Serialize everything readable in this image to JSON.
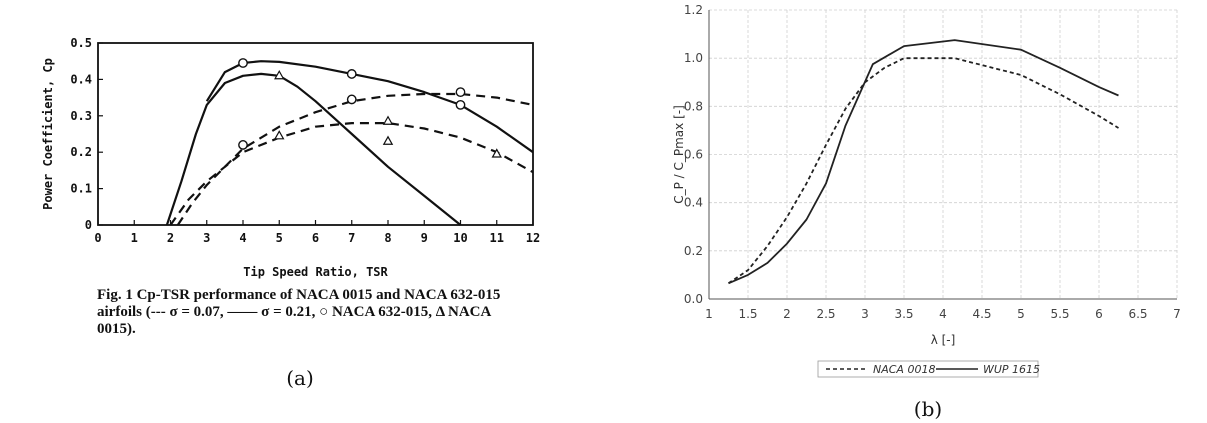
{
  "panel_a": {
    "subfig_label": "(a)",
    "caption": [
      "Fig. 1  Cp-TSR performance of NACA 0015 and NACA 632-015",
      "airfoils (--- σ = 0.07, —— σ = 0.21, ○ NACA 632-015, Δ NACA",
      "0015)."
    ]
  },
  "panel_b": {
    "subfig_label": "(b)"
  },
  "chart_data": [
    {
      "type": "line",
      "title": "",
      "xlabel": "Tip Speed Ratio, TSR",
      "ylabel": "Power Coefficient, Cp",
      "xlim": [
        0,
        12
      ],
      "ylim": [
        0,
        0.5
      ],
      "xticks": [
        "0",
        "1",
        "2",
        "3",
        "4",
        "5",
        "6",
        "7",
        "8",
        "9",
        "10",
        "11",
        "12"
      ],
      "yticks": [
        "0",
        "0.1",
        "0.2",
        "0.3",
        "0.4",
        "0.5"
      ],
      "grid": false,
      "series": [
        {
          "style": "solid",
          "x": [
            1.9,
            2.3,
            2.7,
            3,
            3.5,
            4,
            4.5,
            5,
            5.5,
            6,
            7,
            8,
            9,
            10
          ],
          "y": [
            0,
            0.12,
            0.25,
            0.33,
            0.39,
            0.41,
            0.415,
            0.41,
            0.38,
            0.34,
            0.25,
            0.16,
            0.08,
            0
          ]
        },
        {
          "style": "solid",
          "x": [
            3,
            3.5,
            4,
            4.5,
            5,
            6,
            7,
            8,
            9,
            10,
            11,
            12
          ],
          "y": [
            0.34,
            0.42,
            0.445,
            0.45,
            0.448,
            0.435,
            0.415,
            0.395,
            0.365,
            0.33,
            0.27,
            0.2
          ]
        },
        {
          "style": "dashed",
          "x": [
            2,
            2.5,
            3,
            3.5,
            4,
            5,
            6,
            7,
            8,
            9,
            10,
            11,
            12
          ],
          "y": [
            0,
            0.07,
            0.12,
            0.16,
            0.2,
            0.24,
            0.27,
            0.28,
            0.28,
            0.265,
            0.24,
            0.2,
            0.145
          ]
        },
        {
          "style": "dashed",
          "x": [
            2.2,
            2.6,
            3,
            3.5,
            4,
            5,
            6,
            7,
            8,
            9,
            10,
            11,
            12
          ],
          "y": [
            0,
            0.06,
            0.11,
            0.16,
            0.21,
            0.27,
            0.31,
            0.34,
            0.355,
            0.36,
            0.36,
            0.35,
            0.33
          ]
        }
      ],
      "markers": [
        {
          "shape": "circle",
          "points": [
            [
              4,
              0.445
            ],
            [
              7,
              0.415
            ],
            [
              10,
              0.33
            ],
            [
              7,
              0.345
            ],
            [
              10,
              0.365
            ],
            [
              4,
              0.22
            ]
          ]
        },
        {
          "shape": "triangle",
          "points": [
            [
              5,
              0.41
            ],
            [
              8,
              0.23
            ],
            [
              5,
              0.245
            ],
            [
              8,
              0.285
            ],
            [
              11,
              0.195
            ]
          ]
        }
      ]
    },
    {
      "type": "line",
      "title": "",
      "xlabel": "λ [-]",
      "ylabel": "C_P / C_Pmax [-]",
      "xlim": [
        1,
        7
      ],
      "ylim": [
        0,
        1.2
      ],
      "xticks": [
        "1",
        "1.5",
        "2",
        "2.5",
        "3",
        "3.5",
        "4",
        "4.5",
        "5",
        "5.5",
        "6",
        "6.5",
        "7"
      ],
      "yticks": [
        "0.0",
        "0.2",
        "0.4",
        "0.6",
        "0.8",
        "1.0",
        "1.2"
      ],
      "grid": true,
      "legend_position": "bottom",
      "series": [
        {
          "name": "NACA 0018",
          "style": "dashed",
          "x": [
            1.25,
            1.5,
            1.75,
            2,
            2.25,
            2.5,
            2.75,
            3,
            3.25,
            3.5,
            4.15,
            5,
            5.5,
            6,
            6.25
          ],
          "y": [
            0.065,
            0.12,
            0.22,
            0.34,
            0.48,
            0.64,
            0.79,
            0.9,
            0.96,
            1.0,
            1.0,
            0.93,
            0.85,
            0.76,
            0.71
          ]
        },
        {
          "name": "WUP 1615",
          "style": "solid",
          "x": [
            1.25,
            1.5,
            1.75,
            2,
            2.25,
            2.5,
            2.75,
            3.1,
            3.5,
            4.15,
            5,
            5.5,
            6,
            6.25
          ],
          "y": [
            0.065,
            0.1,
            0.15,
            0.23,
            0.33,
            0.48,
            0.72,
            0.975,
            1.05,
            1.075,
            1.035,
            0.96,
            0.88,
            0.845
          ]
        }
      ]
    }
  ]
}
